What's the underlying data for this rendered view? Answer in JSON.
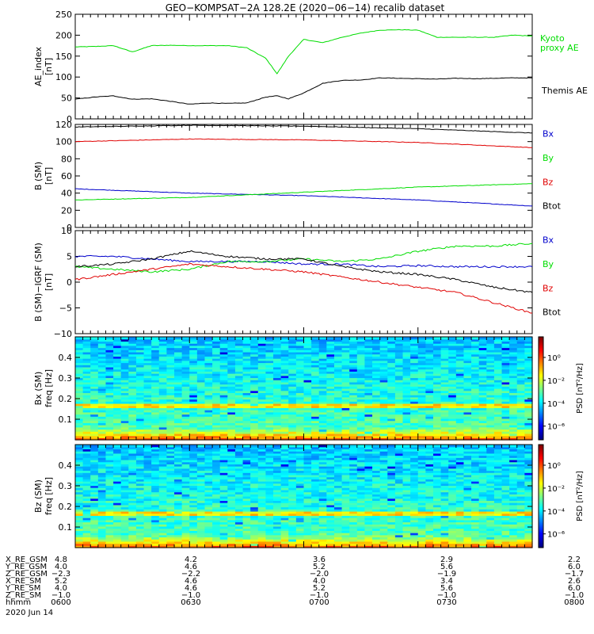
{
  "title": "GEO−KOMPSAT−2A 128.2E (2020−06−14) recalib dataset",
  "colors": {
    "green": "#00dd00",
    "black": "#000000",
    "red": "#e00000",
    "blue": "#0000cc"
  },
  "chart_data": [
    {
      "type": "line",
      "ylabel": "AE_index",
      "yunit": "[nT]",
      "ylim": [
        0,
        250
      ],
      "yticks": [
        "0",
        "50",
        "100",
        "150",
        "200",
        "250"
      ],
      "x": [
        "06:00",
        "06:05",
        "06:10",
        "06:15",
        "06:20",
        "06:25",
        "06:30",
        "06:35",
        "06:40",
        "06:45",
        "06:50",
        "06:53",
        "06:56",
        "07:00",
        "07:05",
        "07:10",
        "07:15",
        "07:20",
        "07:25",
        "07:30",
        "07:35",
        "07:40",
        "07:45",
        "07:50",
        "07:55",
        "08:00"
      ],
      "series": [
        {
          "name": "Kyoto proxy AE",
          "label_lines": [
            "Kyoto",
            "proxy AE"
          ],
          "color": "green",
          "values": [
            172,
            173,
            175,
            160,
            175,
            176,
            175,
            175,
            175,
            170,
            145,
            108,
            150,
            190,
            182,
            195,
            205,
            212,
            213,
            212,
            195,
            195,
            195,
            195,
            200,
            198
          ]
        },
        {
          "name": "Themis AE",
          "label_lines": [
            "Themis AE"
          ],
          "color": "black",
          "values": [
            47,
            52,
            55,
            47,
            48,
            42,
            35,
            38,
            37,
            38,
            52,
            55,
            48,
            62,
            85,
            92,
            93,
            98,
            97,
            96,
            95,
            97,
            96,
            97,
            98,
            98
          ]
        }
      ]
    },
    {
      "type": "line",
      "ylabel": "B (SM)",
      "yunit": "[nT]",
      "ylim": [
        0,
        120
      ],
      "yticks": [
        "0",
        "20",
        "40",
        "60",
        "80",
        "100",
        "120"
      ],
      "x": [
        "06:00",
        "06:30",
        "07:00",
        "07:30",
        "08:00"
      ],
      "series": [
        {
          "name": "Bx",
          "color": "blue",
          "values": [
            45,
            40,
            37,
            32,
            25
          ]
        },
        {
          "name": "By",
          "color": "green",
          "values": [
            32,
            35,
            41,
            47,
            51
          ]
        },
        {
          "name": "Bz",
          "color": "red",
          "values": [
            100,
            103,
            102,
            99,
            93
          ]
        },
        {
          "name": "Btot",
          "color": "black",
          "values": [
            117,
            119,
            118,
            115,
            110
          ]
        }
      ]
    },
    {
      "type": "line",
      "ylabel": "B (SM)−IGRF (SM)",
      "yunit": "[nT]",
      "ylim": [
        -10,
        10
      ],
      "yticks": [
        "−10",
        "−5",
        "0",
        "5",
        "10"
      ],
      "x": [
        "06:00",
        "06:10",
        "06:20",
        "06:30",
        "06:40",
        "06:50",
        "07:00",
        "07:10",
        "07:20",
        "07:30",
        "07:40",
        "07:50",
        "08:00"
      ],
      "series": [
        {
          "name": "Bx",
          "color": "blue",
          "values": [
            5,
            5,
            4.5,
            4,
            4,
            4,
            3.5,
            3.5,
            3,
            3.2,
            3,
            3,
            3
          ]
        },
        {
          "name": "By",
          "color": "green",
          "values": [
            3,
            2.5,
            2,
            2.5,
            4,
            4,
            4.5,
            4,
            4.5,
            6,
            7,
            7,
            7.5
          ]
        },
        {
          "name": "Bz",
          "color": "red",
          "values": [
            0.5,
            1.5,
            2.5,
            3.5,
            3,
            2.5,
            2,
            1,
            0,
            -1,
            -2,
            -4,
            -6
          ]
        },
        {
          "name": "Btot",
          "color": "black",
          "values": [
            3,
            3.5,
            4.5,
            6,
            5,
            4.5,
            4.5,
            3,
            2,
            1.5,
            0.5,
            -1,
            -2
          ]
        }
      ]
    },
    {
      "type": "heatmap",
      "ylabel": "Bx (SM)",
      "yunit": "freq [Hz]",
      "ylim": [
        0,
        0.5
      ],
      "yticks": [
        "0.1",
        "0.2",
        "0.3",
        "0.4"
      ],
      "colorbar_label": "PSD [nT²/Hz]",
      "colorbar_ticks": [
        "10⁰",
        "10⁻²",
        "10⁻⁴",
        "10⁻⁶"
      ]
    },
    {
      "type": "heatmap",
      "ylabel": "Bz (SM)",
      "yunit": "freq [Hz]",
      "ylim": [
        0,
        0.5
      ],
      "yticks": [
        "0.1",
        "0.2",
        "0.3",
        "0.4"
      ],
      "colorbar_label": "PSD [nT²/Hz]",
      "colorbar_ticks": [
        "10⁰",
        "10⁻²",
        "10⁻⁴",
        "10⁻⁶"
      ]
    }
  ],
  "ephemeris": {
    "rows": [
      {
        "label": "X_RE_GSM",
        "values": [
          "4.8",
          "4.2",
          "3.6",
          "2.9",
          "2.2"
        ]
      },
      {
        "label": "Y_RE_GSM",
        "values": [
          "4.0",
          "4.6",
          "5.2",
          "5.6",
          "6.0"
        ]
      },
      {
        "label": "Z_RE_GSM",
        "values": [
          "−2.3",
          "−2.2",
          "−2.0",
          "−1.9",
          "−1.7"
        ]
      },
      {
        "label": "X_RE_SM",
        "values": [
          "5.2",
          "4.6",
          "4.0",
          "3.4",
          "2.6"
        ]
      },
      {
        "label": "Y_RE_SM",
        "values": [
          "4.0",
          "4.6",
          "5.2",
          "5.6",
          "6.0"
        ]
      },
      {
        "label": "Z_RE_SM",
        "values": [
          "−1.0",
          "−1.0",
          "−1.0",
          "−1.0",
          "−1.0"
        ]
      },
      {
        "label": "hhmm",
        "values": [
          "0600",
          "0630",
          "0700",
          "0730",
          "0800"
        ]
      }
    ],
    "date": "2020 Jun 14"
  }
}
